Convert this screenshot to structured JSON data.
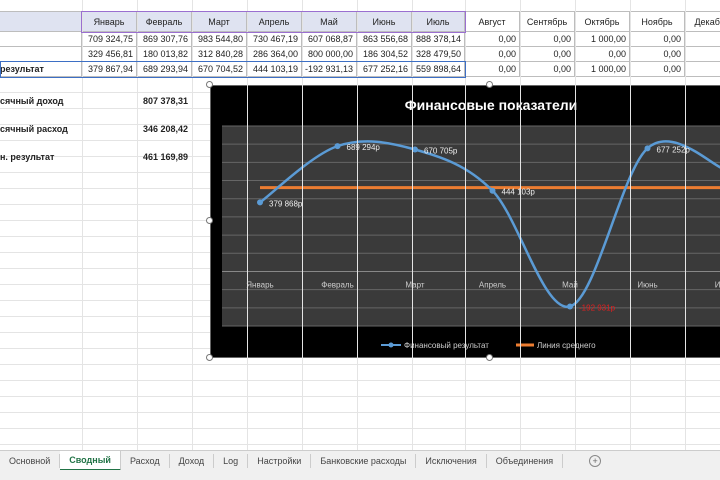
{
  "months": [
    "Январь",
    "Февраль",
    "Март",
    "Апрель",
    "Май",
    "Июнь",
    "Июль",
    "Август",
    "Сентябрь",
    "Октябрь",
    "Ноябрь",
    "Декабрь"
  ],
  "rows": [
    {
      "label": "",
      "values": [
        "709 324,75",
        "869 307,76",
        "983 544,80",
        "730 467,19",
        "607 068,87",
        "863 556,68",
        "888 378,14",
        "0,00",
        "0,00",
        "1 000,00",
        "0,00",
        "0"
      ]
    },
    {
      "label": "",
      "values": [
        "329 456,81",
        "180 013,82",
        "312 840,28",
        "286 364,00",
        "800 000,00",
        "186 304,52",
        "328 479,50",
        "0,00",
        "0,00",
        "0,00",
        "0,00",
        "0"
      ]
    },
    {
      "label": "результат",
      "values": [
        "379 867,94",
        "689 293,94",
        "670 704,52",
        "444 103,19",
        "-192 931,13",
        "677 252,16",
        "559 898,64",
        "0,00",
        "0,00",
        "1 000,00",
        "0,00",
        "0"
      ]
    }
  ],
  "summary": [
    {
      "label": "сячный  доход",
      "value": "807 378,31"
    },
    {
      "label": "сячный расход",
      "value": "346 208,42"
    },
    {
      "label": "н. результат",
      "value": "461 169,89"
    }
  ],
  "chart_data": {
    "type": "line",
    "title": "Финансовые показатели",
    "categories": [
      "Январь",
      "Февраль",
      "Март",
      "Апрель",
      "Май",
      "Июнь",
      "Июль"
    ],
    "series": [
      {
        "name": "Финансовый результат",
        "values": [
          379868,
          689294,
          670705,
          444103,
          -192931,
          677252,
          559899
        ],
        "labels": [
          "379 868р",
          "689 294р",
          "670 705р",
          "444 103р",
          "-192 931р",
          "677 252р",
          ""
        ],
        "color": "#5b9bd5"
      },
      {
        "name": "Линия среднего",
        "values": [
          461170,
          461170,
          461170,
          461170,
          461170,
          461170,
          461170
        ],
        "color": "#ed7d31"
      }
    ],
    "ylim": [
      -300000,
      800000
    ],
    "grid": true,
    "legend": "bottom",
    "negative_label_color": "#e02020"
  },
  "tabs": [
    "Основной",
    "Сводный",
    "Расход",
    "Доход",
    "Log",
    "Настройки",
    "Банковские расходы",
    "Исключения",
    "Объединения"
  ],
  "active_tab": "Сводный",
  "add_sheet": "+"
}
